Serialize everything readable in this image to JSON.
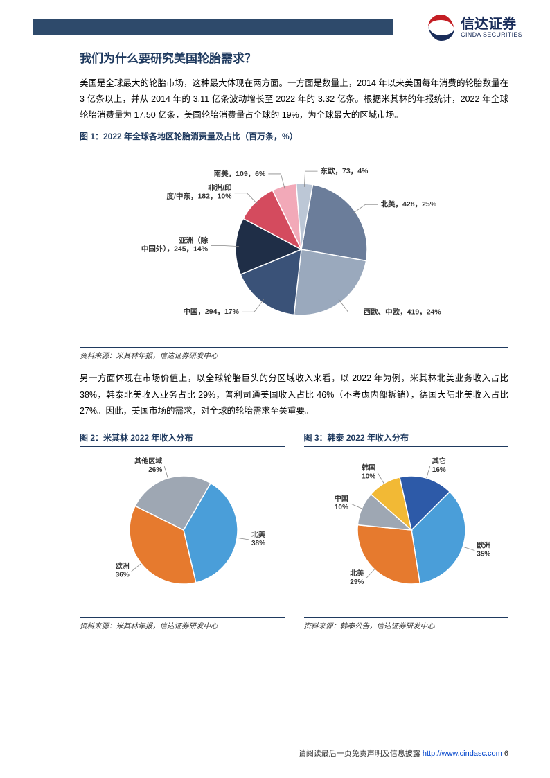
{
  "header": {
    "brand_cn": "信达证券",
    "brand_en": "CINDA SECURITIES"
  },
  "title": "我们为什么要研究美国轮胎需求？",
  "para1": "美国是全球最大的轮胎市场，这种最大体现在两方面。一方面是数量上，2014 年以来美国每年消费的轮胎数量在 3 亿条以上，并从 2014 年的 3.11 亿条波动增长至 2022 年的 3.32 亿条。根据米其林的年报统计，2022 年全球轮胎消费量为 17.50 亿条，美国轮胎消费量占全球的 19%，为全球最大的区域市场。",
  "fig1": {
    "title": "图 1：2022 年全球各地区轮胎消费量及占比（百万条，%）",
    "source": "资料来源：米其林年报，信达证券研发中心",
    "type": "pie",
    "background_color": "#ffffff",
    "label_fontsize": 10.5,
    "slices": [
      {
        "label": "北美",
        "value": 428,
        "pct": 25,
        "color": "#6b7d9a",
        "label_text": "北美，428，25%"
      },
      {
        "label": "西欧、中欧",
        "value": 419,
        "pct": 24,
        "color": "#9aa9bd",
        "label_text": "西欧、中欧，419，24%"
      },
      {
        "label": "中国",
        "value": 294,
        "pct": 17,
        "color": "#3a5278",
        "label_text": "中国，294，17%"
      },
      {
        "label": "亚洲（除中国外）",
        "value": 245,
        "pct": 14,
        "color": "#1f2e47",
        "label_text": "亚洲（除中国外），245，14%"
      },
      {
        "label": "非洲/印度/中东",
        "value": 182,
        "pct": 10,
        "color": "#d44b5e",
        "label_text": "非洲/印度/中东，182，10%"
      },
      {
        "label": "南美",
        "value": 109,
        "pct": 6,
        "color": "#f2a9b8",
        "label_text": "南美，109，6%"
      },
      {
        "label": "东欧",
        "value": 73,
        "pct": 4,
        "color": "#bcc7d6",
        "label_text": "东欧，73，4%"
      }
    ]
  },
  "para2": "另一方面体现在市场价值上，以全球轮胎巨头的分区域收入来看，以 2022 年为例，米其林北美业务收入占比 38%，韩泰北美收入业务占比 29%，普利司通美国收入占比 46%（不考虑内部拆销），德国大陆北美收入占比 27%。因此，美国市场的需求，对全球的轮胎需求至关重要。",
  "fig2": {
    "title": "图 2：米其林 2022 年收入分布",
    "source": "资料来源：米其林年报，信达证券研发中心",
    "type": "pie",
    "slices": [
      {
        "label": "北美",
        "pct": 38,
        "color": "#4a9ed9",
        "label_text": "北美\n38%"
      },
      {
        "label": "欧洲",
        "pct": 36,
        "color": "#e67a2e",
        "label_text": "欧洲\n36%"
      },
      {
        "label": "其他区域",
        "pct": 26,
        "color": "#9ea7b3",
        "label_text": "其他区域\n26%"
      }
    ]
  },
  "fig3": {
    "title": "图 3：韩泰 2022 年收入分布",
    "source": "资料来源：韩泰公告，信达证券研发中心",
    "type": "pie",
    "slices": [
      {
        "label": "欧洲",
        "pct": 35,
        "color": "#4a9ed9",
        "label_text": "欧洲\n35%"
      },
      {
        "label": "北美",
        "pct": 29,
        "color": "#e67a2e",
        "label_text": "北美\n29%"
      },
      {
        "label": "中国",
        "pct": 10,
        "color": "#9ea7b3",
        "label_text": "中国\n10%"
      },
      {
        "label": "韩国",
        "pct": 10,
        "color": "#f2b935",
        "label_text": "韩国\n10%"
      },
      {
        "label": "其它",
        "pct": 16,
        "color": "#2d5aa8",
        "label_text": "其它\n16%"
      }
    ]
  },
  "footer": {
    "text": "请阅读最后一页免责声明及信息披露 ",
    "link": "http://www.cindasc.com",
    "page": "6"
  }
}
